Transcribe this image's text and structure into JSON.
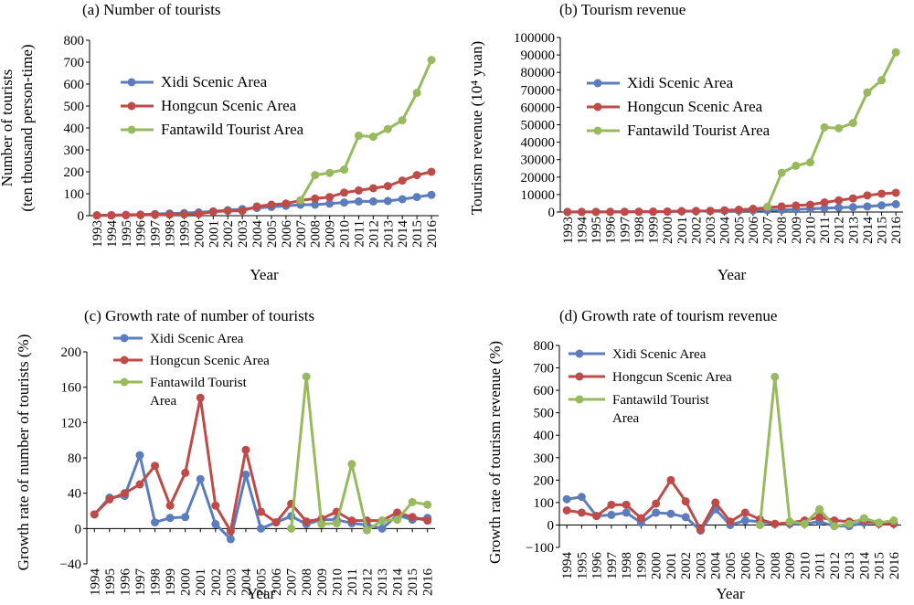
{
  "colors": {
    "xidi": "#5B7DBE",
    "hongcun": "#BE4B48",
    "fantawild": "#98BA5E"
  },
  "chart_data": [
    {
      "type": "line",
      "title": "(a) Number of tourists",
      "xlabel": "Year",
      "ylabel": [
        "Number of tourists",
        "(ten thousand person-time)"
      ],
      "ylim": [
        0,
        800
      ],
      "yticks": [
        "0",
        "100",
        "200",
        "300",
        "400",
        "500",
        "600",
        "700",
        "800"
      ],
      "grid": false,
      "legend_position": "upper-left",
      "x": [
        "1993",
        "1994",
        "1995",
        "1996",
        "1997",
        "1998",
        "1999",
        "2000",
        "2001",
        "2002",
        "2003",
        "2004",
        "2005",
        "2006",
        "2007",
        "2008",
        "2009",
        "2010",
        "2011",
        "2012",
        "2013",
        "2014",
        "2015",
        "2016"
      ],
      "series": [
        {
          "name": "Xidi Scenic Area",
          "color": "#5B7DBE",
          "values": [
            2,
            3,
            4,
            5,
            8,
            10,
            12,
            15,
            20,
            25,
            30,
            35,
            40,
            45,
            50,
            50,
            55,
            60,
            65,
            65,
            67,
            75,
            85,
            95
          ]
        },
        {
          "name": "Hongcun Scenic Area",
          "color": "#BE4B48",
          "values": [
            1,
            1,
            2,
            3,
            4,
            5,
            6,
            8,
            18,
            22,
            22,
            42,
            50,
            55,
            70,
            78,
            85,
            105,
            115,
            125,
            135,
            160,
            185,
            200
          ]
        },
        {
          "name": "Fantawild Tourist Area",
          "color": "#98BA5E",
          "values": [
            null,
            null,
            null,
            null,
            null,
            null,
            null,
            null,
            null,
            null,
            null,
            null,
            null,
            null,
            70,
            185,
            195,
            210,
            365,
            360,
            395,
            435,
            560,
            710
          ]
        }
      ]
    },
    {
      "type": "line",
      "title": "(b) Tourism revenue",
      "xlabel": "Year",
      "ylabel": [
        "Tourism revenue (10⁴ yuan)"
      ],
      "ylim": [
        0,
        100000
      ],
      "yticks": [
        "0",
        "10000",
        "20000",
        "30000",
        "40000",
        "50000",
        "60000",
        "70000",
        "80000",
        "90000",
        "100000"
      ],
      "grid": false,
      "legend_position": "upper-left",
      "x": [
        "1993",
        "1994",
        "1995",
        "1996",
        "1997",
        "1998",
        "1999",
        "2000",
        "2001",
        "2002",
        "2003",
        "2004",
        "2005",
        "2006",
        "2007",
        "2008",
        "2009",
        "2010",
        "2011",
        "2012",
        "2013",
        "2014",
        "2015",
        "2016"
      ],
      "series": [
        {
          "name": "Xidi Scenic Area",
          "color": "#5B7DBE",
          "values": [
            50,
            60,
            80,
            100,
            150,
            200,
            250,
            300,
            400,
            500,
            600,
            700,
            800,
            900,
            1000,
            1200,
            1500,
            1800,
            2200,
            2500,
            2800,
            3200,
            3800,
            4500
          ]
        },
        {
          "name": "Hongcun Scenic Area",
          "color": "#BE4B48",
          "values": [
            30,
            40,
            50,
            80,
            100,
            150,
            200,
            250,
            500,
            600,
            650,
            1000,
            1300,
            1800,
            2500,
            3200,
            3700,
            4200,
            5500,
            6700,
            7800,
            9500,
            10500,
            11000
          ]
        },
        {
          "name": "Fantawild Tourist Area",
          "color": "#98BA5E",
          "values": [
            null,
            null,
            null,
            null,
            null,
            null,
            null,
            null,
            null,
            null,
            null,
            null,
            null,
            null,
            3000,
            22500,
            26500,
            28500,
            48500,
            48000,
            51000,
            68500,
            75500,
            91500
          ]
        }
      ]
    },
    {
      "type": "line",
      "title": "(c) Growth rate of number of tourists",
      "xlabel": "Year",
      "ylabel": [
        "Growth rate of number of tourists (%)"
      ],
      "ylim": [
        -40,
        200
      ],
      "yticks": [
        "−40",
        "0",
        "40",
        "80",
        "120",
        "160",
        "200"
      ],
      "grid": false,
      "legend_position": "upper-left",
      "x": [
        "1994",
        "1995",
        "1996",
        "1997",
        "1998",
        "1999",
        "2000",
        "2001",
        "2002",
        "2003",
        "2004",
        "2005",
        "2006",
        "2007",
        "2008",
        "2009",
        "2010",
        "2011",
        "2012",
        "2013",
        "2014",
        "2015",
        "2016"
      ],
      "series": [
        {
          "name": "Xidi Scenic Area",
          "color": "#5B7DBE",
          "values": [
            16,
            35,
            37,
            83,
            7,
            12,
            13,
            56,
            5,
            -12,
            61,
            0,
            7,
            14,
            5,
            10,
            10,
            6,
            4,
            0,
            15,
            10,
            12
          ]
        },
        {
          "name": "Hongcun Scenic Area",
          "color": "#BE4B48",
          "values": [
            16,
            33,
            40,
            50,
            71,
            26,
            63,
            148,
            26,
            -3,
            89,
            19,
            7,
            28,
            8,
            11,
            19,
            9,
            9,
            9,
            18,
            13,
            9
          ]
        },
        {
          "name": "Fantawild Tourist Area",
          "color": "#98BA5E",
          "values": [
            null,
            null,
            null,
            null,
            null,
            null,
            null,
            null,
            null,
            null,
            null,
            null,
            null,
            0,
            172,
            5,
            6,
            73,
            -2,
            9,
            10,
            30,
            27
          ]
        }
      ]
    },
    {
      "type": "line",
      "title": "(d) Growth rate of tourism revenue",
      "xlabel": "Year",
      "ylabel": [
        "Growth rate of tourism revenue (%)"
      ],
      "ylim": [
        -100,
        800
      ],
      "yticks": [
        "−100",
        "0",
        "100",
        "200",
        "300",
        "400",
        "500",
        "600",
        "700",
        "800"
      ],
      "grid": false,
      "legend_position": "upper-left",
      "x": [
        "1994",
        "1995",
        "1996",
        "1997",
        "1998",
        "1999",
        "2000",
        "2001",
        "2002",
        "2003",
        "2004",
        "2005",
        "2006",
        "2007",
        "2008",
        "2009",
        "2010",
        "2011",
        "2012",
        "2013",
        "2014",
        "2015",
        "2016"
      ],
      "series": [
        {
          "name": "Xidi Scenic Area",
          "color": "#5B7DBE",
          "values": [
            115,
            125,
            40,
            45,
            55,
            10,
            55,
            50,
            35,
            -25,
            70,
            0,
            20,
            15,
            5,
            5,
            5,
            15,
            -5,
            -5,
            10,
            10,
            10
          ]
        },
        {
          "name": "Hongcun Scenic Area",
          "color": "#BE4B48",
          "values": [
            65,
            55,
            40,
            90,
            90,
            30,
            95,
            200,
            105,
            -20,
            100,
            15,
            55,
            25,
            5,
            10,
            20,
            35,
            20,
            15,
            20,
            5,
            5
          ]
        },
        {
          "name": "Fantawild Tourist Area",
          "color": "#98BA5E",
          "values": [
            null,
            null,
            null,
            null,
            null,
            null,
            null,
            null,
            null,
            null,
            null,
            null,
            null,
            0,
            660,
            15,
            5,
            70,
            -5,
            5,
            30,
            10,
            20
          ]
        }
      ]
    }
  ]
}
